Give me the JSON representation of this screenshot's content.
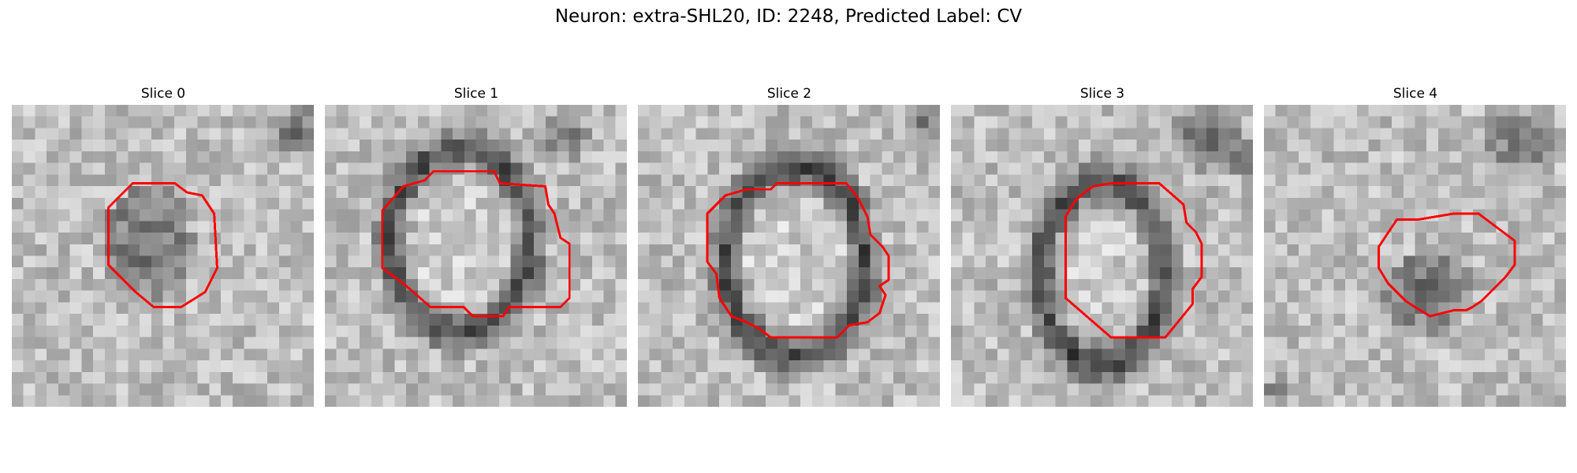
{
  "figure": {
    "title": "Neuron: extra-SHL20, ID: 2248, Predicted Label: CV",
    "outline_color": "#ff0000",
    "colormap": "gray",
    "panels": [
      {
        "label": "Slice 0"
      },
      {
        "label": "Slice 1"
      },
      {
        "label": "Slice 2"
      },
      {
        "label": "Slice 3"
      },
      {
        "label": "Slice 4"
      }
    ]
  }
}
